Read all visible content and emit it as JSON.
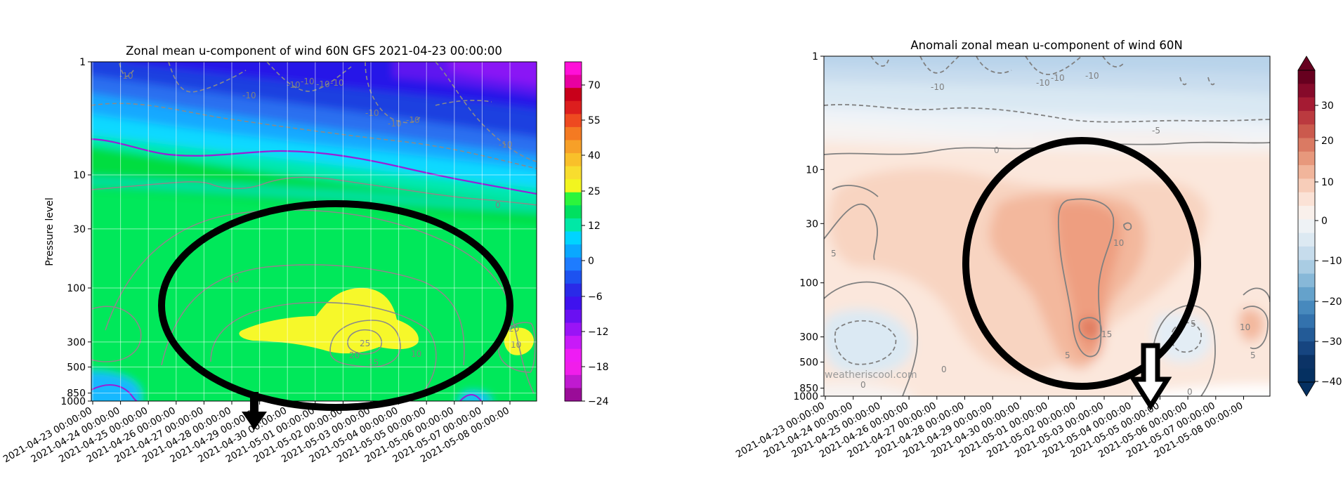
{
  "chart_data": [
    {
      "type": "contour",
      "title": "Zonal mean u-component of wind 60N GFS 2021-04-23 00:00:00",
      "ylabel": "Pressure level",
      "y_scale": "log (inverted)",
      "y_ticks": [
        "1",
        "10",
        "30",
        "100",
        "300",
        "500",
        "850",
        "1000"
      ],
      "x_ticks": [
        "2021-04-23 00:00:00",
        "2021-04-24 00:00:00",
        "2021-04-25 00:00:00",
        "2021-04-26 00:00:00",
        "2021-04-27 00:00:00",
        "2021-04-28 00:00:00",
        "2021-04-29 00:00:00",
        "2021-04-30 00:00:00",
        "2021-05-01 00:00:00",
        "2021-05-02 00:00:00",
        "2021-05-03 00:00:00",
        "2021-05-04 00:00:00",
        "2021-05-05 00:00:00",
        "2021-05-06 00:00:00",
        "2021-05-07 00:00:00",
        "2021-05-08 00:00:00"
      ],
      "colorbar_ticks": [
        "70",
        "55",
        "40",
        "25",
        "12",
        "0",
        "−6",
        "−12",
        "−18",
        "−24"
      ],
      "contour_labels": [
        "-10",
        "-10",
        "-10",
        "-10",
        "-10",
        "-10",
        "-10",
        "-10",
        "-10",
        "-10",
        "0",
        "10",
        "20",
        "25",
        "15",
        "10",
        "10",
        "20"
      ],
      "grid": true,
      "annotation": "black ellipse around 2021-04-26 to 2021-05-08, 20-1000 hPa; arrow pointing at 2021-04-30"
    },
    {
      "type": "contour",
      "title": "Anomali zonal mean u-component of wind 60N",
      "y_scale": "log (inverted)",
      "y_ticks": [
        "1",
        "10",
        "30",
        "100",
        "300",
        "500",
        "850",
        "1000"
      ],
      "x_ticks": [
        "2021-04-23 00:00:00",
        "2021-04-24 00:00:00",
        "2021-04-25 00:00:00",
        "2021-04-26 00:00:00",
        "2021-04-27 00:00:00",
        "2021-04-28 00:00:00",
        "2021-04-29 00:00:00",
        "2021-04-30 00:00:00",
        "2021-05-01 00:00:00",
        "2021-05-02 00:00:00",
        "2021-05-03 00:00:00",
        "2021-05-04 00:00:00",
        "2021-05-05 00:00:00",
        "2021-05-06 00:00:00",
        "2021-05-07 00:00:00",
        "2021-05-08 00:00:00"
      ],
      "colorbar_ticks": [
        "30",
        "20",
        "10",
        "0",
        "−10",
        "−20",
        "−30",
        "−40"
      ],
      "contour_labels": [
        "-10",
        "-10",
        "-10",
        "-10",
        "-5",
        "0",
        "5",
        "10",
        "15",
        "5",
        "5",
        "10",
        "5",
        "0",
        "0",
        "0"
      ],
      "watermark": "weatheriscool.com",
      "grid": false,
      "annotation": "black ellipse around 2021-05-01 to 2021-05-08, 10-600 hPa; arrow pointing at 2021-05-05"
    }
  ]
}
